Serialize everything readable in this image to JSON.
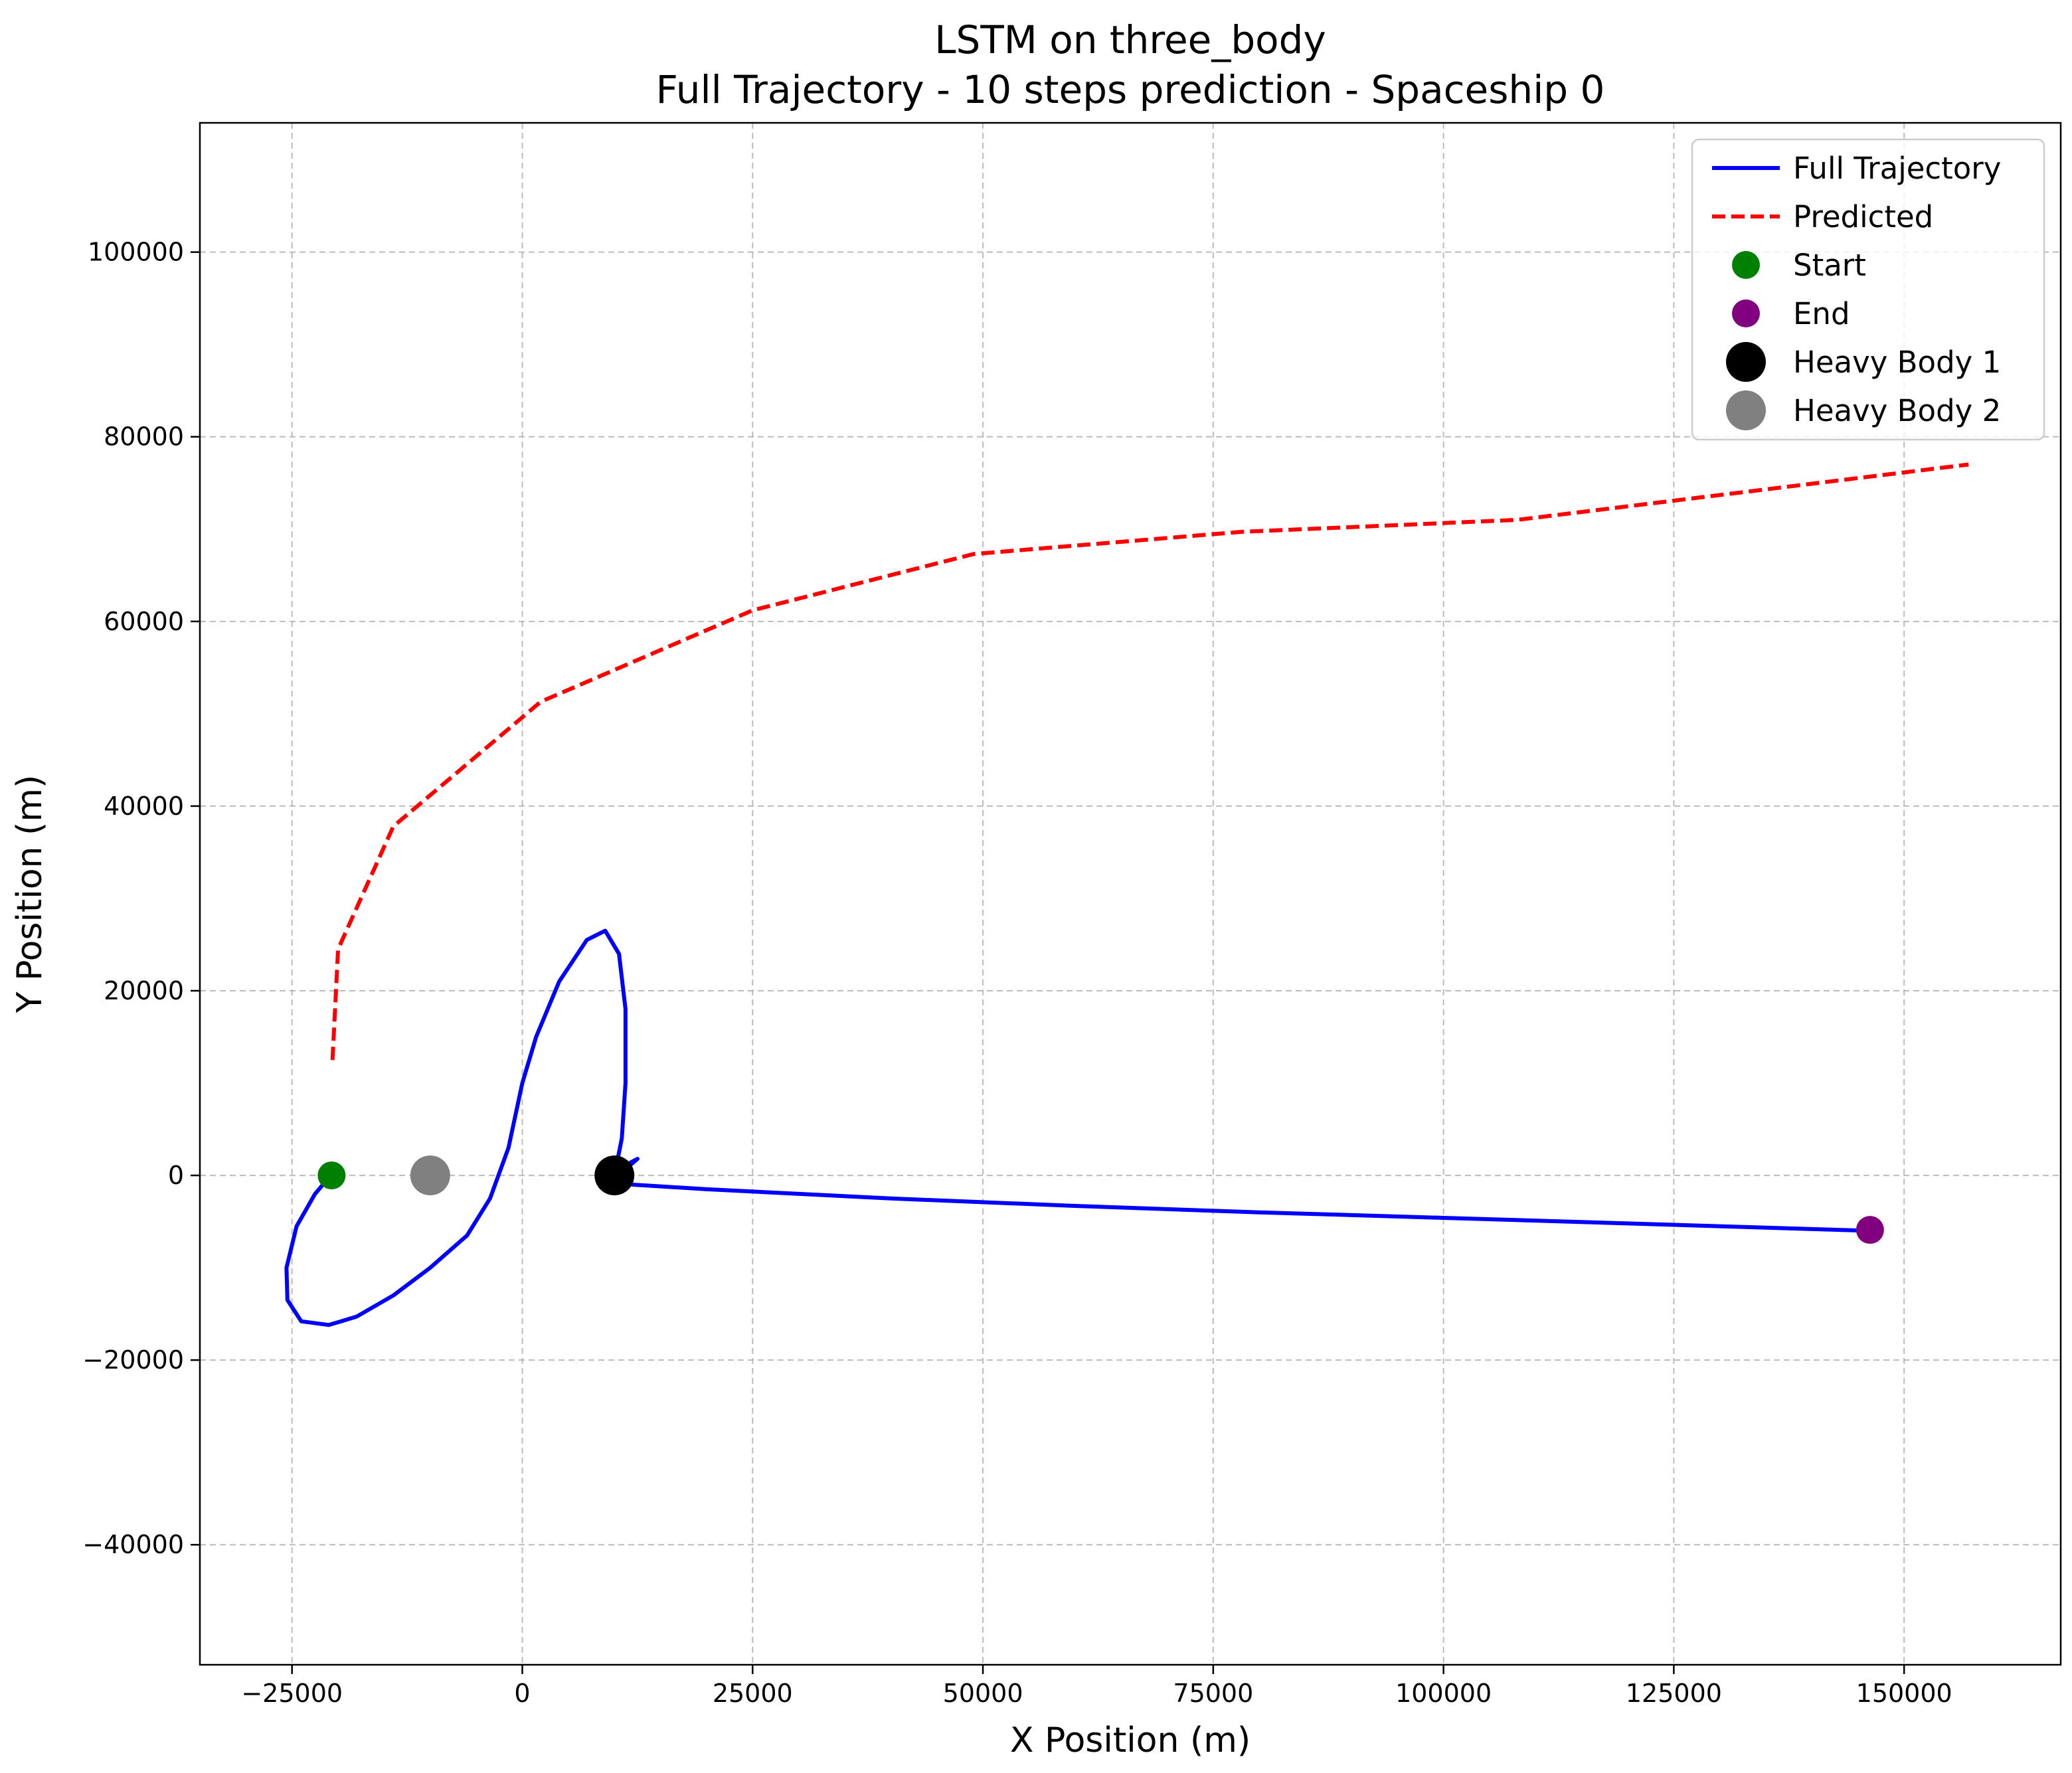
{
  "chart_data": {
    "type": "line",
    "title": "LSTM on three_body",
    "subtitle": "Full Trajectory - 10 steps prediction - Spaceship 0",
    "xlabel": "X Position (m)",
    "ylabel": "Y Position (m)",
    "xlim": [
      -35000,
      167000
    ],
    "ylim": [
      -53000,
      114000
    ],
    "xticks": [
      -25000,
      0,
      25000,
      50000,
      75000,
      100000,
      125000,
      150000
    ],
    "xtick_labels": [
      "−25000",
      "0",
      "25000",
      "50000",
      "75000",
      "100000",
      "125000",
      "150000"
    ],
    "yticks": [
      -40000,
      -20000,
      0,
      20000,
      40000,
      60000,
      80000,
      100000
    ],
    "ytick_labels": [
      "−40000",
      "−20000",
      "0",
      "20000",
      "40000",
      "60000",
      "80000",
      "100000"
    ],
    "grid": true,
    "legend_position": "top-right",
    "series": [
      {
        "name": "Full Trajectory",
        "style": "solid",
        "color": "#0000ff",
        "x": [
          -20800,
          -22500,
          -24500,
          -25600,
          -25500,
          -24000,
          -21000,
          -18000,
          -14000,
          -10000,
          -6000,
          -3500,
          -1500,
          0,
          1500,
          4000,
          7000,
          9000,
          10500,
          11200,
          11200,
          10800,
          10200,
          9800,
          11000,
          12500,
          11000,
          9800,
          12000,
          20000,
          40000,
          60000,
          80000,
          100000,
          120000,
          146200
        ],
        "y": [
          0,
          -2000,
          -5500,
          -10000,
          -13500,
          -15800,
          -16200,
          -15300,
          -13000,
          -10000,
          -6500,
          -2500,
          3000,
          10000,
          15000,
          21000,
          25500,
          26500,
          24000,
          18000,
          10000,
          4000,
          1000,
          200,
          1000,
          1800,
          500,
          -500,
          -1000,
          -1500,
          -2500,
          -3300,
          -4000,
          -4600,
          -5200,
          -6000
        ]
      },
      {
        "name": "Predicted",
        "style": "dashed",
        "color": "#ff0000",
        "x": [
          -20600,
          -20000,
          -14000,
          2000,
          25000,
          49000,
          78000,
          108000,
          157000
        ],
        "y": [
          12500,
          24500,
          37800,
          51300,
          61200,
          67300,
          69700,
          71000,
          77000
        ]
      }
    ],
    "points": [
      {
        "name": "Start",
        "x": -20700,
        "y": 0,
        "color": "#008000"
      },
      {
        "name": "End",
        "x": 146300,
        "y": -5900,
        "color": "#800080"
      },
      {
        "name": "Heavy Body 1",
        "x": 10000,
        "y": 0,
        "color": "#000000"
      },
      {
        "name": "Heavy Body 2",
        "x": -10000,
        "y": 0,
        "color": "#808080"
      }
    ]
  }
}
